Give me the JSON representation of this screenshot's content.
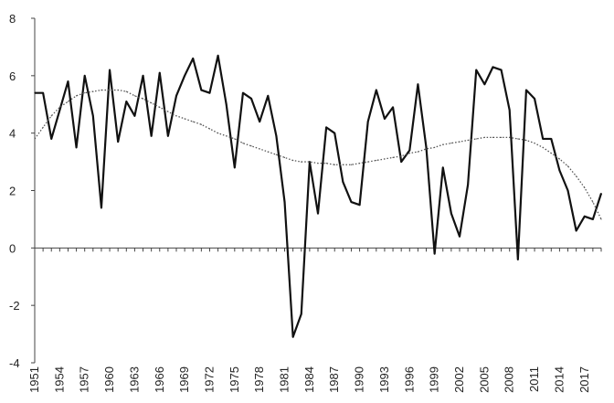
{
  "chart_data": {
    "type": "line",
    "title": "",
    "xlabel": "",
    "ylabel": "",
    "xlim": [
      1951,
      2019
    ],
    "ylim": [
      -4,
      8
    ],
    "y_ticks": [
      -4,
      -2,
      0,
      2,
      4,
      6,
      8
    ],
    "x_ticks": [
      1951,
      1954,
      1957,
      1960,
      1963,
      1966,
      1969,
      1972,
      1975,
      1978,
      1981,
      1984,
      1987,
      1990,
      1993,
      1996,
      1999,
      2002,
      2005,
      2008,
      2011,
      2014,
      2017
    ],
    "grid": false,
    "legend": "none",
    "x": [
      1951,
      1952,
      1953,
      1954,
      1955,
      1956,
      1957,
      1958,
      1959,
      1960,
      1961,
      1962,
      1963,
      1964,
      1965,
      1966,
      1967,
      1968,
      1969,
      1970,
      1971,
      1972,
      1973,
      1974,
      1975,
      1976,
      1977,
      1978,
      1979,
      1980,
      1981,
      1982,
      1983,
      1984,
      1985,
      1986,
      1987,
      1988,
      1989,
      1990,
      1991,
      1992,
      1993,
      1994,
      1995,
      1996,
      1997,
      1998,
      1999,
      2000,
      2001,
      2002,
      2003,
      2004,
      2005,
      2006,
      2007,
      2008,
      2009,
      2010,
      2011,
      2012,
      2013,
      2014,
      2015,
      2016,
      2017,
      2018,
      2019
    ],
    "series": [
      {
        "style": "solid",
        "values": [
          5.4,
          5.4,
          3.8,
          4.8,
          5.8,
          3.5,
          6.0,
          4.6,
          1.4,
          6.2,
          3.7,
          5.1,
          4.6,
          6.0,
          3.9,
          6.1,
          3.9,
          5.3,
          6.0,
          6.6,
          5.5,
          5.4,
          6.7,
          5.0,
          2.8,
          5.4,
          5.2,
          4.4,
          5.3,
          3.9,
          1.6,
          -3.1,
          -2.3,
          3.0,
          1.2,
          4.2,
          4.0,
          2.3,
          1.6,
          1.5,
          4.4,
          5.5,
          4.5,
          4.9,
          3.0,
          3.4,
          5.7,
          3.5,
          -0.2,
          2.8,
          1.2,
          0.4,
          2.2,
          6.2,
          5.7,
          6.3,
          6.2,
          4.8,
          -0.4,
          5.5,
          5.2,
          3.8,
          3.8,
          2.7,
          2.0,
          0.6,
          1.1,
          1.0,
          1.9
        ]
      },
      {
        "style": "dotted",
        "values": [
          3.8,
          4.2,
          4.6,
          4.9,
          5.1,
          5.3,
          5.4,
          5.45,
          5.5,
          5.5,
          5.5,
          5.45,
          5.3,
          5.2,
          5.05,
          4.9,
          4.75,
          4.6,
          4.5,
          4.4,
          4.3,
          4.15,
          4.0,
          3.9,
          3.8,
          3.65,
          3.55,
          3.45,
          3.35,
          3.25,
          3.15,
          3.05,
          3.0,
          3.0,
          2.95,
          2.95,
          2.9,
          2.9,
          2.9,
          2.95,
          3.0,
          3.05,
          3.1,
          3.15,
          3.2,
          3.3,
          3.35,
          3.45,
          3.5,
          3.6,
          3.65,
          3.7,
          3.75,
          3.8,
          3.85,
          3.85,
          3.85,
          3.85,
          3.8,
          3.75,
          3.65,
          3.5,
          3.3,
          3.1,
          2.85,
          2.5,
          2.1,
          1.6,
          1.0
        ]
      }
    ]
  }
}
